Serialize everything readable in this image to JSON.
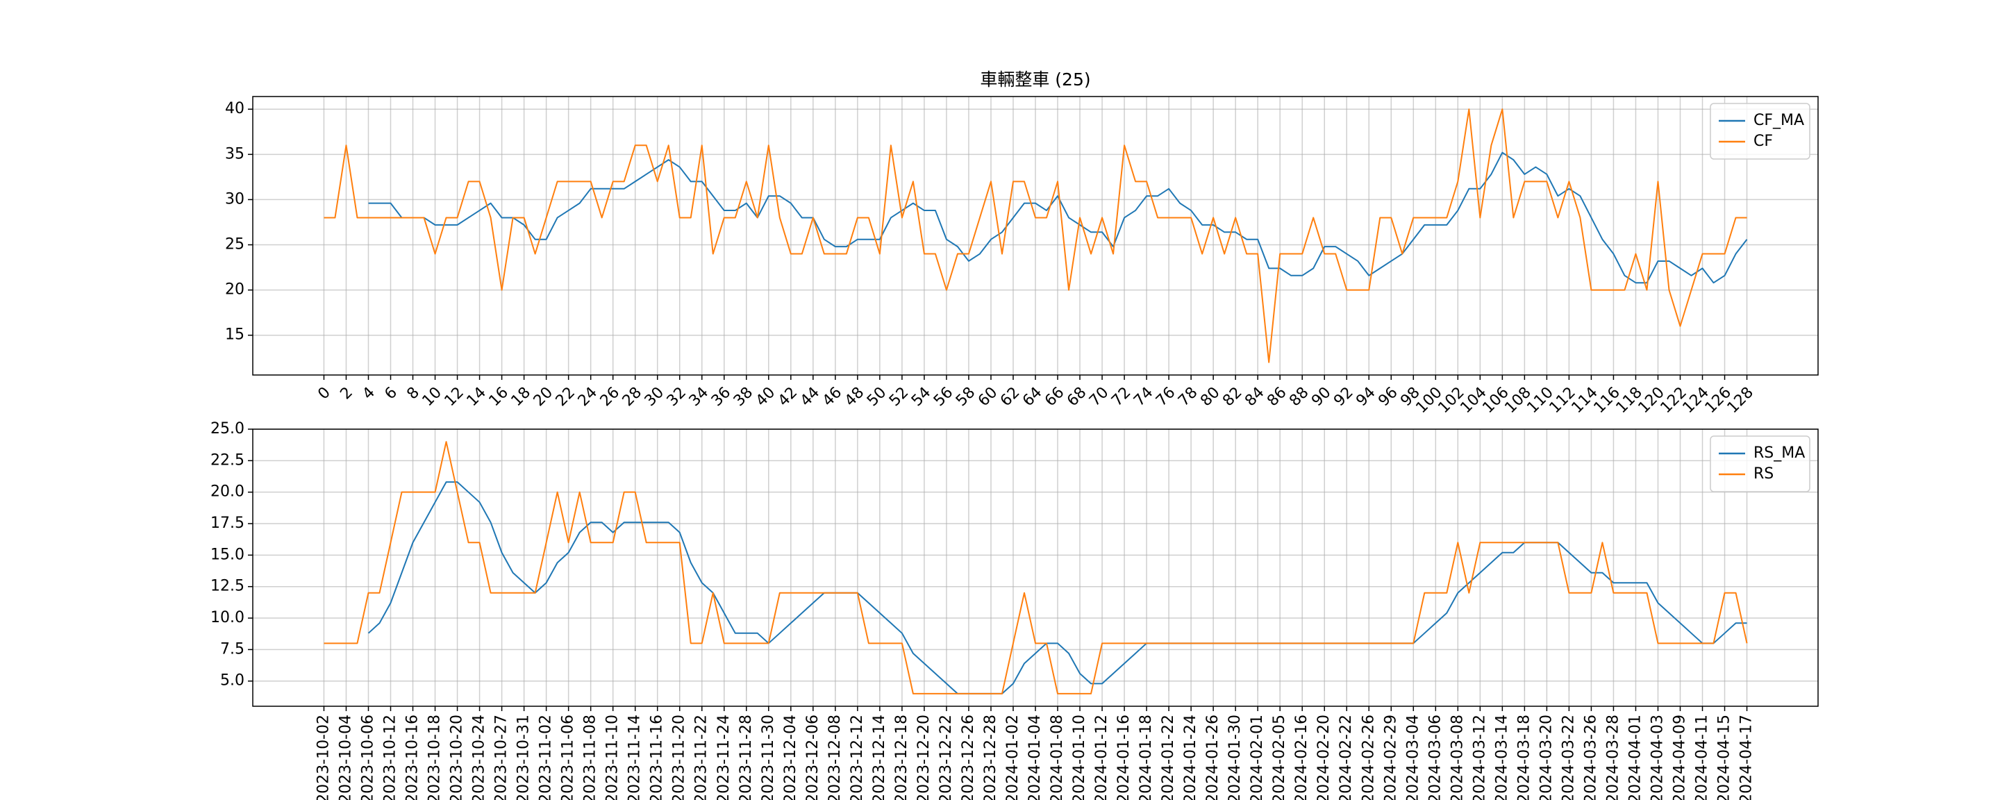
{
  "chart_data": [
    {
      "type": "line",
      "title": "車輛整車 (25)",
      "x": [
        0,
        1,
        2,
        3,
        4,
        5,
        6,
        7,
        8,
        9,
        10,
        11,
        12,
        13,
        14,
        15,
        16,
        17,
        18,
        19,
        20,
        21,
        22,
        23,
        24,
        25,
        26,
        27,
        28,
        29,
        30,
        31,
        32,
        33,
        34,
        35,
        36,
        37,
        38,
        39,
        40,
        41,
        42,
        43,
        44,
        45,
        46,
        47,
        48,
        49,
        50,
        51,
        52,
        53,
        54,
        55,
        56,
        57,
        58,
        59,
        60,
        61,
        62,
        63,
        64,
        65,
        66,
        67,
        68,
        69,
        70,
        71,
        72,
        73,
        74,
        75,
        76,
        77,
        78,
        79,
        80,
        81,
        82,
        83,
        84,
        85,
        86,
        87,
        88,
        89,
        90,
        91,
        92,
        93,
        94,
        95,
        96,
        97,
        98,
        99,
        100,
        101,
        102,
        103,
        104,
        105,
        106,
        107,
        108,
        109,
        110,
        111,
        112,
        113,
        114,
        115,
        116,
        117,
        118,
        119,
        120,
        121,
        122,
        123,
        124,
        125,
        126,
        127,
        128
      ],
      "series": [
        {
          "name": "CF_MA",
          "color": "#1f77b4",
          "values": [
            null,
            null,
            null,
            null,
            29.6,
            29.6,
            29.6,
            28,
            28,
            28,
            27.2,
            27.2,
            27.2,
            28,
            28.8,
            29.6,
            28,
            28,
            27.2,
            25.6,
            25.6,
            28,
            28.8,
            29.6,
            31.2,
            31.2,
            31.2,
            31.2,
            32,
            32.8,
            33.6,
            34.4,
            33.6,
            32,
            32,
            30.4,
            28.8,
            28.8,
            29.6,
            28,
            30.4,
            30.4,
            29.6,
            28,
            28,
            25.6,
            24.8,
            24.8,
            25.6,
            25.6,
            25.6,
            28,
            28.8,
            29.6,
            28.8,
            28.8,
            25.6,
            24.8,
            23.2,
            24,
            25.6,
            26.4,
            28,
            29.6,
            29.6,
            28.8,
            30.4,
            28,
            27.2,
            26.4,
            26.4,
            24.8,
            28,
            28.8,
            30.4,
            30.4,
            31.2,
            29.6,
            28.8,
            27.2,
            27.2,
            26.4,
            26.4,
            25.6,
            25.6,
            22.4,
            22.4,
            21.6,
            21.6,
            22.4,
            24.8,
            24.8,
            24,
            23.2,
            21.6,
            22.4,
            23.2,
            24,
            25.6,
            27.2,
            27.2,
            27.2,
            28.8,
            31.2,
            31.2,
            32.8,
            35.2,
            34.4,
            32.8,
            33.6,
            32.8,
            30.4,
            31.2,
            30.4,
            28,
            25.6,
            24,
            21.6,
            20.8,
            20.8,
            23.2,
            23.2,
            22.4,
            21.6,
            22.4,
            20.8,
            21.6,
            24,
            25.6
          ]
        },
        {
          "name": "CF",
          "color": "#ff7f0e",
          "values": [
            28,
            28,
            36,
            28,
            28,
            28,
            28,
            28,
            28,
            28,
            24,
            28,
            28,
            32,
            32,
            28,
            20,
            28,
            28,
            24,
            28,
            32,
            32,
            32,
            32,
            28,
            32,
            32,
            36,
            36,
            32,
            36,
            28,
            28,
            36,
            24,
            28,
            28,
            32,
            28,
            36,
            28,
            24,
            24,
            28,
            24,
            24,
            24,
            28,
            28,
            24,
            36,
            28,
            32,
            24,
            24,
            20,
            24,
            24,
            28,
            32,
            24,
            32,
            32,
            28,
            28,
            32,
            20,
            28,
            24,
            28,
            24,
            36,
            32,
            32,
            28,
            28,
            28,
            28,
            24,
            28,
            24,
            28,
            24,
            24,
            12,
            24,
            24,
            24,
            28,
            24,
            24,
            20,
            20,
            20,
            28,
            28,
            24,
            28,
            28,
            28,
            28,
            32,
            40,
            28,
            36,
            40,
            28,
            32,
            32,
            32,
            28,
            32,
            28,
            20,
            20,
            20,
            20,
            24,
            20,
            32,
            20,
            16,
            20,
            24,
            24,
            24,
            28,
            28
          ]
        }
      ],
      "xlim": [
        -6.4,
        134.4
      ],
      "xticks": [
        0,
        2,
        4,
        6,
        8,
        10,
        12,
        14,
        16,
        18,
        20,
        22,
        24,
        26,
        28,
        30,
        32,
        34,
        36,
        38,
        40,
        42,
        44,
        46,
        48,
        50,
        52,
        54,
        56,
        58,
        60,
        62,
        64,
        66,
        68,
        70,
        72,
        74,
        76,
        78,
        80,
        82,
        84,
        86,
        88,
        90,
        92,
        94,
        96,
        98,
        100,
        102,
        104,
        106,
        108,
        110,
        112,
        114,
        116,
        118,
        120,
        122,
        124,
        126,
        128
      ],
      "ylim": [
        10.6,
        41.4
      ],
      "yticks": [
        15,
        20,
        25,
        30,
        35,
        40
      ],
      "grid": true,
      "legend": "upper right"
    },
    {
      "type": "line",
      "categories": [
        "2023-10-02",
        null,
        "2023-10-04",
        null,
        "2023-10-06",
        null,
        "2023-10-12",
        null,
        "2023-10-16",
        null,
        "2023-10-18",
        null,
        "2023-10-20",
        null,
        "2023-10-24",
        null,
        "2023-10-27",
        null,
        "2023-10-31",
        null,
        "2023-11-02",
        null,
        "2023-11-06",
        null,
        "2023-11-08",
        null,
        "2023-11-10",
        null,
        "2023-11-14",
        null,
        "2023-11-16",
        null,
        "2023-11-20",
        null,
        "2023-11-22",
        null,
        "2023-11-24",
        null,
        "2023-11-28",
        null,
        "2023-11-30",
        null,
        "2023-12-04",
        null,
        "2023-12-06",
        null,
        "2023-12-08",
        null,
        "2023-12-12",
        null,
        "2023-12-14",
        null,
        "2023-12-18",
        null,
        "2023-12-20",
        null,
        "2023-12-22",
        null,
        "2023-12-26",
        null,
        "2023-12-28",
        null,
        "2024-01-02",
        null,
        "2024-01-04",
        null,
        "2024-01-08",
        null,
        "2024-01-10",
        null,
        "2024-01-12",
        null,
        "2024-01-16",
        null,
        "2024-01-18",
        null,
        "2024-01-22",
        null,
        "2024-01-24",
        null,
        "2024-01-26",
        null,
        "2024-01-30",
        null,
        "2024-02-01",
        null,
        "2024-02-05",
        null,
        "2024-02-16",
        null,
        "2024-02-20",
        null,
        "2024-02-22",
        null,
        "2024-02-26",
        null,
        "2024-02-29",
        null,
        "2024-03-04",
        null,
        "2024-03-06",
        null,
        "2024-03-08",
        null,
        "2024-03-12",
        null,
        "2024-03-14",
        null,
        "2024-03-18",
        null,
        "2024-03-20",
        null,
        "2024-03-22",
        null,
        "2024-03-26",
        null,
        "2024-03-28",
        null,
        "2024-04-01",
        null,
        "2024-04-03",
        null,
        "2024-04-09",
        null,
        "2024-04-11",
        null,
        "2024-04-15",
        null,
        "2024-04-17"
      ],
      "series": [
        {
          "name": "RS_MA",
          "color": "#1f77b4",
          "values": [
            null,
            null,
            null,
            null,
            8.8,
            9.6,
            11.2,
            13.6,
            16,
            17.6,
            19.2,
            20.8,
            20.8,
            20,
            19.2,
            17.6,
            15.2,
            13.6,
            12.8,
            12,
            12.8,
            14.4,
            15.2,
            16.8,
            17.6,
            17.6,
            16.8,
            17.6,
            17.6,
            17.6,
            17.6,
            17.6,
            16.8,
            14.4,
            12.8,
            12,
            10.4,
            8.8,
            8.8,
            8.8,
            8,
            8.8,
            9.6,
            10.4,
            11.2,
            12,
            12,
            12,
            12,
            11.2,
            10.4,
            9.6,
            8.8,
            7.2,
            6.4,
            5.6,
            4.8,
            4,
            4,
            4,
            4,
            4,
            4.8,
            6.4,
            7.2,
            8,
            8,
            7.2,
            5.6,
            4.8,
            4.8,
            5.6,
            6.4,
            7.2,
            8,
            8,
            8,
            8,
            8,
            8,
            8,
            8,
            8,
            8,
            8,
            8,
            8,
            8,
            8,
            8,
            8,
            8,
            8,
            8,
            8,
            8,
            8,
            8,
            8,
            8.8,
            9.6,
            10.4,
            12,
            12.8,
            13.6,
            14.4,
            15.2,
            15.2,
            16,
            16,
            16,
            16,
            15.2,
            14.4,
            13.6,
            13.6,
            12.8,
            12.8,
            12.8,
            12.8,
            11.2,
            10.4,
            9.6,
            8.8,
            8,
            8,
            8.8,
            9.6,
            9.6
          ]
        },
        {
          "name": "RS",
          "color": "#ff7f0e",
          "values": [
            8,
            8,
            8,
            8,
            12,
            12,
            16,
            20,
            20,
            20,
            20,
            24,
            20,
            16,
            16,
            12,
            12,
            12,
            12,
            12,
            16,
            20,
            16,
            20,
            16,
            16,
            16,
            20,
            20,
            16,
            16,
            16,
            16,
            8,
            8,
            12,
            8,
            8,
            8,
            8,
            8,
            12,
            12,
            12,
            12,
            12,
            12,
            12,
            12,
            8,
            8,
            8,
            8,
            4,
            4,
            4,
            4,
            4,
            4,
            4,
            4,
            4,
            8,
            12,
            8,
            8,
            4,
            4,
            4,
            4,
            8,
            8,
            8,
            8,
            8,
            8,
            8,
            8,
            8,
            8,
            8,
            8,
            8,
            8,
            8,
            8,
            8,
            8,
            8,
            8,
            8,
            8,
            8,
            8,
            8,
            8,
            8,
            8,
            8,
            12,
            12,
            12,
            16,
            12,
            16,
            16,
            16,
            16,
            16,
            16,
            16,
            16,
            12,
            12,
            12,
            16,
            12,
            12,
            12,
            12,
            8,
            8,
            8,
            8,
            8,
            8,
            12,
            12,
            8
          ]
        }
      ],
      "xlim": [
        -6.4,
        134.4
      ],
      "ylim": [
        3,
        25
      ],
      "yticks": [
        {
          "value": 5,
          "label": "5.0"
        },
        7.5,
        {
          "value": 10,
          "label": "10.0"
        },
        12.5,
        {
          "value": 15,
          "label": "15.0"
        },
        17.5,
        {
          "value": 20,
          "label": "20.0"
        },
        22.5,
        {
          "value": 25,
          "label": "25.0"
        }
      ],
      "grid": true,
      "legend": "upper right"
    }
  ]
}
